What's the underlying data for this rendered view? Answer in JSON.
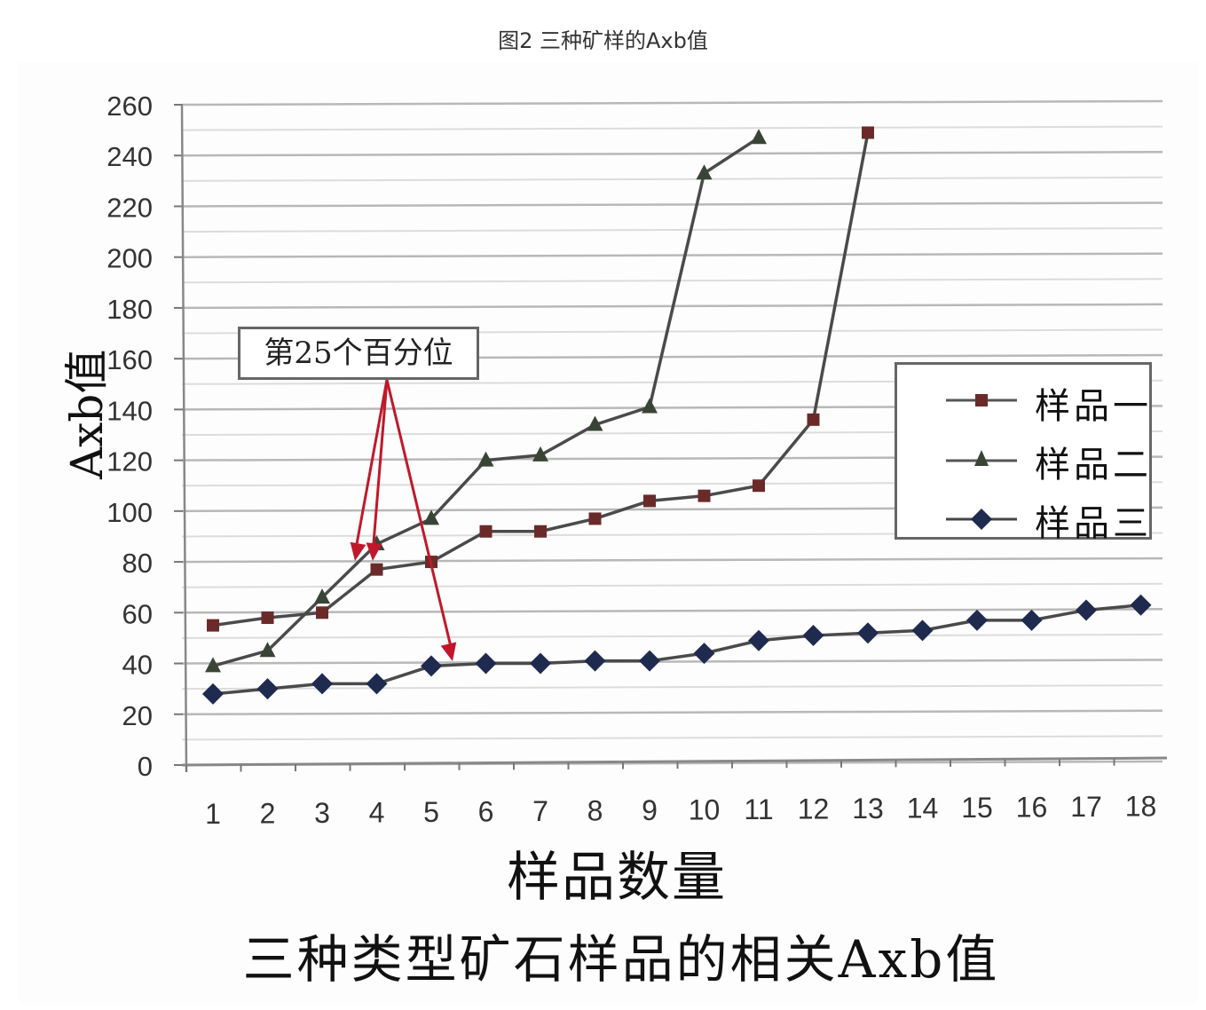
{
  "caption": "图2  三种矿样的Axb值",
  "chart_data": {
    "type": "line",
    "title": "三种类型矿石样品的相关Axb值",
    "xlabel": "样品数量",
    "ylabel": "Axb值",
    "x": [
      1,
      2,
      3,
      4,
      5,
      6,
      7,
      8,
      9,
      10,
      11,
      12,
      13,
      14,
      15,
      16,
      17,
      18
    ],
    "yticks": [
      0,
      20,
      40,
      60,
      80,
      100,
      120,
      140,
      160,
      180,
      200,
      220,
      240,
      260
    ],
    "ylim": [
      0,
      260
    ],
    "grid": true,
    "legend_position": "right-middle",
    "series": [
      {
        "name": "样品一",
        "marker": "square",
        "color": "#6b2a2a",
        "values": [
          55,
          58,
          60,
          77,
          80,
          92,
          92,
          97,
          104,
          106,
          110,
          136,
          249
        ]
      },
      {
        "name": "样品二",
        "marker": "triangle",
        "color": "#3a4436",
        "values": [
          39,
          45,
          66,
          87,
          97,
          120,
          122,
          134,
          141,
          233,
          247
        ]
      },
      {
        "name": "样品三",
        "marker": "diamond",
        "color": "#1f2a4f",
        "values": [
          28,
          30,
          32,
          32,
          39,
          40,
          40,
          41,
          41,
          44,
          49,
          51,
          52,
          53,
          57,
          57,
          61,
          63
        ]
      }
    ],
    "annotations": [
      {
        "text": "第25个百分位",
        "arrows_to": [
          {
            "series": "样品二",
            "x": 3.6
          },
          {
            "series": "样品一",
            "x": 3.9
          },
          {
            "series": "样品三",
            "x": 5.4
          }
        ],
        "arrow_color": "#c0182a"
      }
    ]
  },
  "legend": {
    "items": [
      {
        "label": "样品一"
      },
      {
        "label": "样品二"
      },
      {
        "label": "样品三"
      }
    ]
  },
  "annotation_label": "第25个百分位"
}
